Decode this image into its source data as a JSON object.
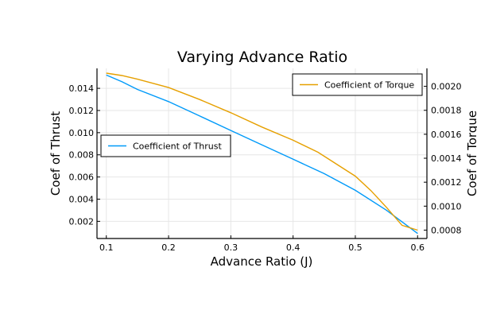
{
  "chart_data": {
    "type": "line",
    "title": "Varying Advance Ratio",
    "xlabel": "Advance Ratio (J)",
    "xlim": [
      0.085,
      0.615
    ],
    "xticks": [
      0.1,
      0.2,
      0.3,
      0.4,
      0.5,
      0.6
    ],
    "x_tick_labels": [
      "0.1",
      "0.2",
      "0.3",
      "0.4",
      "0.5",
      "0.6"
    ],
    "grid": true,
    "left_axis": {
      "label": "Coef of Thrust",
      "ylim": [
        0.00045,
        0.0158
      ],
      "ticks": [
        0.002,
        0.004,
        0.006,
        0.008,
        0.01,
        0.012,
        0.014
      ],
      "tick_labels": [
        "0.002",
        "0.004",
        "0.006",
        "0.008",
        "0.010",
        "0.012",
        "0.014"
      ]
    },
    "right_axis": {
      "label": "Coef of Torque",
      "ylim": [
        0.00073,
        0.00215
      ],
      "ticks": [
        0.0008,
        0.001,
        0.0012,
        0.0014,
        0.0016,
        0.0018,
        0.002
      ],
      "tick_labels": [
        "0.0008",
        "0.0010",
        "0.0012",
        "0.0014",
        "0.0016",
        "0.0018",
        "0.0020"
      ]
    },
    "series": [
      {
        "name": "Coefficient of Thrust",
        "axis": "left",
        "color": "#009af9",
        "legend_position": "center-left",
        "x": [
          0.1,
          0.125,
          0.15,
          0.2,
          0.25,
          0.3,
          0.35,
          0.4,
          0.45,
          0.5,
          0.55,
          0.6
        ],
        "y": [
          0.0152,
          0.0146,
          0.0139,
          0.0128,
          0.0115,
          0.0102,
          0.0089,
          0.0076,
          0.0063,
          0.0048,
          0.003,
          0.0009
        ]
      },
      {
        "name": "Coefficient of Torque",
        "axis": "right",
        "color": "#e6a000",
        "legend_position": "top-right",
        "x": [
          0.1,
          0.125,
          0.15,
          0.2,
          0.25,
          0.3,
          0.35,
          0.4,
          0.44,
          0.5,
          0.525,
          0.55,
          0.575,
          0.6
        ],
        "y": [
          0.00211,
          0.00209,
          0.00206,
          0.00199,
          0.00189,
          0.00178,
          0.00166,
          0.00155,
          0.00145,
          0.00125,
          0.00113,
          0.00099,
          0.00084,
          0.0008
        ]
      }
    ]
  }
}
